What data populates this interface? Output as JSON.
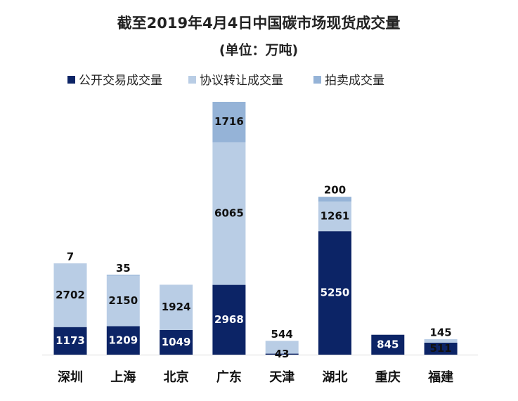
{
  "chart_data": {
    "type": "bar",
    "stacked": true,
    "title": "截至2019年4月4日中国碳市场现货成交量",
    "subtitle": "(单位：万吨)",
    "categories": [
      "深圳",
      "上海",
      "北京",
      "广东",
      "天津",
      "湖北",
      "重庆",
      "福建"
    ],
    "series": [
      {
        "name": "公开交易成交量",
        "color": "#0c2466",
        "values": [
          1173,
          1209,
          1049,
          2968,
          43,
          5250,
          845,
          511
        ]
      },
      {
        "name": "协议转让成交量",
        "color": "#b9cde5",
        "values": [
          2702,
          2150,
          1924,
          6065,
          544,
          1261,
          null,
          145
        ]
      },
      {
        "name": "拍卖成交量",
        "color": "#95b3d7",
        "values": [
          7,
          35,
          null,
          1716,
          null,
          200,
          null,
          null
        ]
      }
    ]
  }
}
